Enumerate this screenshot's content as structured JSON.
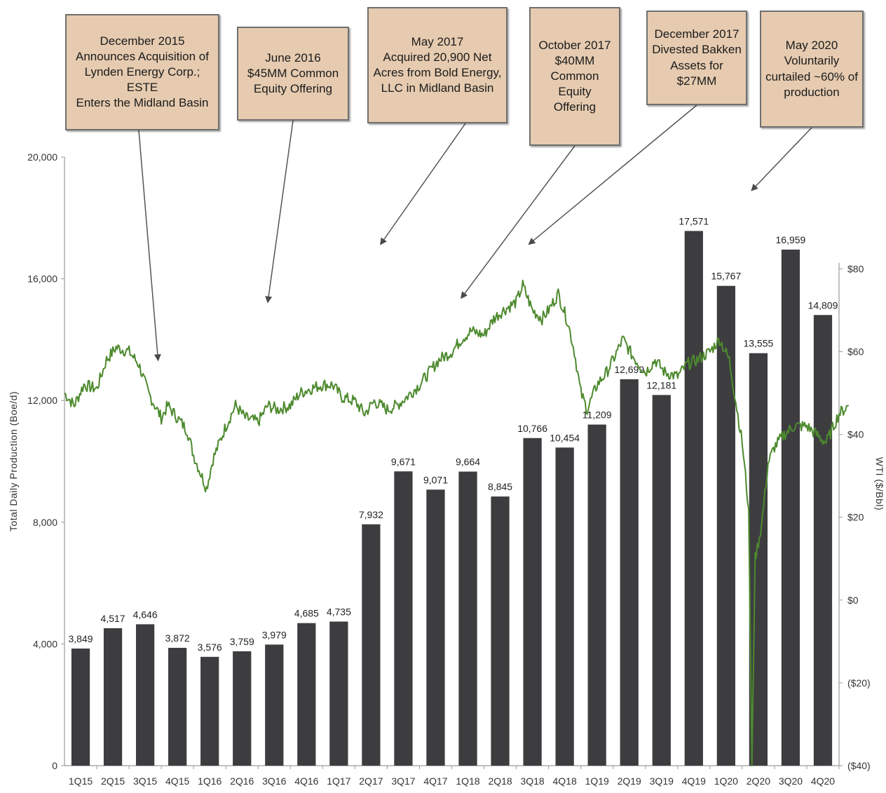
{
  "chart_data": {
    "type": "bar",
    "title": "",
    "categories": [
      "1Q15",
      "2Q15",
      "3Q15",
      "4Q15",
      "1Q16",
      "2Q16",
      "3Q16",
      "4Q16",
      "1Q17",
      "2Q17",
      "3Q17",
      "4Q17",
      "1Q18",
      "2Q18",
      "3Q18",
      "4Q18",
      "1Q19",
      "2Q19",
      "3Q19",
      "4Q19",
      "1Q20",
      "2Q20",
      "3Q20",
      "4Q20"
    ],
    "series": [
      {
        "values": [
          3849,
          4517,
          4646,
          3872,
          3576,
          3759,
          3979,
          4685,
          4735,
          7932,
          9671,
          9071,
          9664,
          8845,
          10766,
          10454,
          11209,
          12699,
          12181,
          17571,
          15767,
          13555,
          16959,
          14809
        ],
        "labels": [
          "3,849",
          "4,517",
          "4,646",
          "3,872",
          "3,576",
          "3,759",
          "3,979",
          "4,685",
          "4,735",
          "7,932",
          "9,671",
          "9,071",
          "9,664",
          "8,845",
          "10,766",
          "10,454",
          "11,209",
          "12,699",
          "12,181",
          "17,571",
          "15,767",
          "13,555",
          "16,959",
          "14,809"
        ],
        "color": "#3d3d40"
      }
    ],
    "line_series": {
      "color": "#4d8a2e",
      "axis": "right",
      "points": [
        [
          0.0,
          50
        ],
        [
          0.3,
          47
        ],
        [
          0.6,
          52
        ],
        [
          1.0,
          51
        ],
        [
          1.3,
          58
        ],
        [
          1.6,
          61
        ],
        [
          2.0,
          60
        ],
        [
          2.3,
          57
        ],
        [
          2.6,
          50
        ],
        [
          3.0,
          44
        ],
        [
          3.2,
          47
        ],
        [
          3.5,
          44
        ],
        [
          3.8,
          41
        ],
        [
          4.0,
          35
        ],
        [
          4.2,
          31
        ],
        [
          4.4,
          27
        ],
        [
          4.6,
          34
        ],
        [
          4.8,
          38
        ],
        [
          5.0,
          42
        ],
        [
          5.3,
          47
        ],
        [
          5.6,
          44
        ],
        [
          6.0,
          43
        ],
        [
          6.3,
          47
        ],
        [
          6.6,
          46
        ],
        [
          7.0,
          47
        ],
        [
          7.3,
          50
        ],
        [
          7.6,
          51
        ],
        [
          8.0,
          52
        ],
        [
          8.3,
          52
        ],
        [
          8.6,
          49
        ],
        [
          9.0,
          48
        ],
        [
          9.3,
          45
        ],
        [
          9.6,
          48
        ],
        [
          10.0,
          46
        ],
        [
          10.3,
          47
        ],
        [
          10.6,
          49
        ],
        [
          11.0,
          52
        ],
        [
          11.3,
          55
        ],
        [
          11.6,
          58
        ],
        [
          12.0,
          60
        ],
        [
          12.3,
          63
        ],
        [
          12.6,
          65
        ],
        [
          13.0,
          64
        ],
        [
          13.3,
          68
        ],
        [
          13.6,
          70
        ],
        [
          14.0,
          72
        ],
        [
          14.2,
          76
        ],
        [
          14.5,
          70
        ],
        [
          14.8,
          68
        ],
        [
          15.0,
          70
        ],
        [
          15.3,
          74
        ],
        [
          15.6,
          67
        ],
        [
          15.8,
          60
        ],
        [
          16.0,
          50
        ],
        [
          16.2,
          46
        ],
        [
          16.5,
          52
        ],
        [
          16.8,
          55
        ],
        [
          17.0,
          58
        ],
        [
          17.3,
          63
        ],
        [
          17.6,
          59
        ],
        [
          18.0,
          55
        ],
        [
          18.3,
          58
        ],
        [
          18.6,
          55
        ],
        [
          19.0,
          54
        ],
        [
          19.3,
          57
        ],
        [
          19.6,
          58
        ],
        [
          20.0,
          60
        ],
        [
          20.3,
          63
        ],
        [
          20.6,
          58
        ],
        [
          20.8,
          48
        ],
        [
          21.0,
          38
        ],
        [
          21.2,
          22
        ],
        [
          21.3,
          -40
        ],
        [
          21.4,
          10
        ],
        [
          21.6,
          18
        ],
        [
          21.8,
          33
        ],
        [
          22.0,
          37
        ],
        [
          22.3,
          40
        ],
        [
          22.6,
          42
        ],
        [
          23.0,
          42
        ],
        [
          23.3,
          40
        ],
        [
          23.6,
          38
        ],
        [
          24.0,
          45
        ],
        [
          24.3,
          47
        ]
      ]
    },
    "ylabel": "Total Daily Production (Boe/d)",
    "y_ticks": [
      "0",
      "4,000",
      "8,000",
      "12,000",
      "16,000",
      "20,000"
    ],
    "ylim": [
      0,
      20000
    ],
    "y2label": "WTI ($/Bbl)",
    "y2_ticks": [
      "($40)",
      "($20)",
      "$0",
      "$20",
      "$40",
      "$60",
      "$80"
    ],
    "y2lim": [
      -40,
      107
    ],
    "annotations": [
      {
        "text": "December 2015\nAnnounces Acquisition of\nLynden Energy Corp.; ESTE\nEnters the Midland Basin",
        "target_x": 2.9,
        "target_wti": 58
      },
      {
        "text": "June 2016\n$45MM Common\nEquity Offering",
        "target_x": 6.3,
        "target_wti": 72
      },
      {
        "text": "May 2017\nAcquired 20,900 Net\nAcres from Bold Energy,\nLLC in Midland Basin",
        "target_x": 9.8,
        "target_wti": 86
      },
      {
        "text": "October 2017\n$40MM\nCommon\nEquity\nOffering",
        "target_x": 12.3,
        "target_wti": 73
      },
      {
        "text": "December 2017\nDivested Bakken\nAssets for $27MM",
        "target_x": 14.4,
        "target_wti": 86
      },
      {
        "text": "May 2020\nVoluntarily\ncurtailed ~60% of\nproduction",
        "target_x": 21.3,
        "target_wti": 99
      }
    ],
    "grid": false,
    "legend": "none"
  }
}
